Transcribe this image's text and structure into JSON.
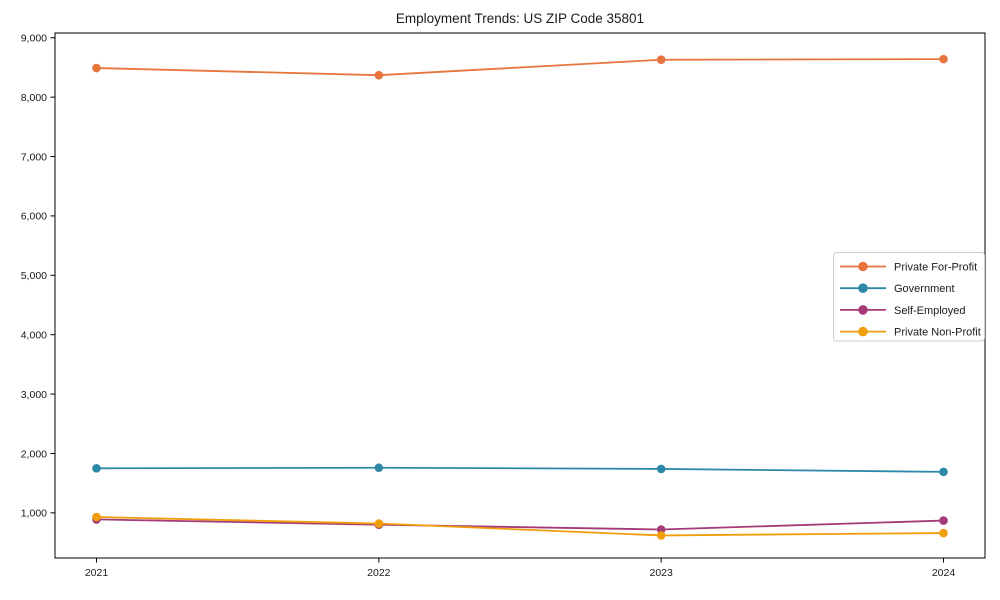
{
  "chart_data": {
    "type": "line",
    "title": "Employment Trends: US ZIP Code 35801",
    "x_tick_labels": [
      "2021",
      "2022",
      "2023",
      "2024"
    ],
    "y_ticks": [
      1000,
      2000,
      3000,
      4000,
      5000,
      6000,
      7000,
      8000,
      9000
    ],
    "y_tick_labels": [
      "1,000",
      "2,000",
      "3,000",
      "4,000",
      "5,000",
      "6,000",
      "7,000",
      "8,000",
      "9,000"
    ],
    "ylim": [
      240,
      9080
    ],
    "grid": false,
    "legend_position": "right-middle",
    "axis_color": "#000000",
    "legend_border_color": "#cccccc",
    "series": [
      {
        "name": "Private For-Profit",
        "color": "#e8743e",
        "values": [
          8490,
          8370,
          8630,
          8640
        ]
      },
      {
        "name": "Government",
        "color": "#2e89a8",
        "values": [
          1750,
          1760,
          1740,
          1690
        ]
      },
      {
        "name": "Self-Employed",
        "color": "#a43a78",
        "values": [
          890,
          800,
          720,
          870
        ]
      },
      {
        "name": "Private Non-Profit",
        "color": "#f09e0c",
        "values": [
          930,
          820,
          620,
          660
        ]
      }
    ]
  }
}
